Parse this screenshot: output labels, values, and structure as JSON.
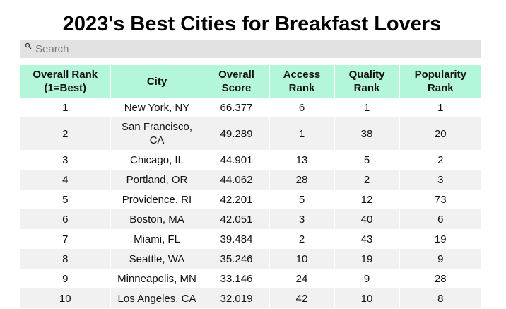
{
  "title": "2023's Best Cities for Breakfast Lovers",
  "search": {
    "placeholder": "Search",
    "icon": "search-icon"
  },
  "table": {
    "columns": [
      "Overall Rank (1=Best)",
      "City",
      "Overall Score",
      "Access Rank",
      "Quality Rank",
      "Popularity Rank"
    ],
    "rows": [
      {
        "rank": "1",
        "city": "New York, NY",
        "score": "66.377",
        "access": "6",
        "quality": "1",
        "popularity": "1"
      },
      {
        "rank": "2",
        "city": "San Francisco, CA",
        "score": "49.289",
        "access": "1",
        "quality": "38",
        "popularity": "20"
      },
      {
        "rank": "3",
        "city": "Chicago, IL",
        "score": "44.901",
        "access": "13",
        "quality": "5",
        "popularity": "2"
      },
      {
        "rank": "4",
        "city": "Portland, OR",
        "score": "44.062",
        "access": "28",
        "quality": "2",
        "popularity": "3"
      },
      {
        "rank": "5",
        "city": "Providence, RI",
        "score": "42.201",
        "access": "5",
        "quality": "12",
        "popularity": "73"
      },
      {
        "rank": "6",
        "city": "Boston, MA",
        "score": "42.051",
        "access": "3",
        "quality": "40",
        "popularity": "6"
      },
      {
        "rank": "7",
        "city": "Miami, FL",
        "score": "39.484",
        "access": "2",
        "quality": "43",
        "popularity": "19"
      },
      {
        "rank": "8",
        "city": "Seattle, WA",
        "score": "35.246",
        "access": "10",
        "quality": "19",
        "popularity": "9"
      },
      {
        "rank": "9",
        "city": "Minneapolis, MN",
        "score": "33.146",
        "access": "24",
        "quality": "9",
        "popularity": "28"
      },
      {
        "rank": "10",
        "city": "Los Angeles, CA",
        "score": "32.019",
        "access": "42",
        "quality": "10",
        "popularity": "8"
      }
    ]
  },
  "colors": {
    "header_bg": "#b3f6d9",
    "stripe_bg": "#f1f1f1",
    "search_bg": "#e2e2e2"
  }
}
